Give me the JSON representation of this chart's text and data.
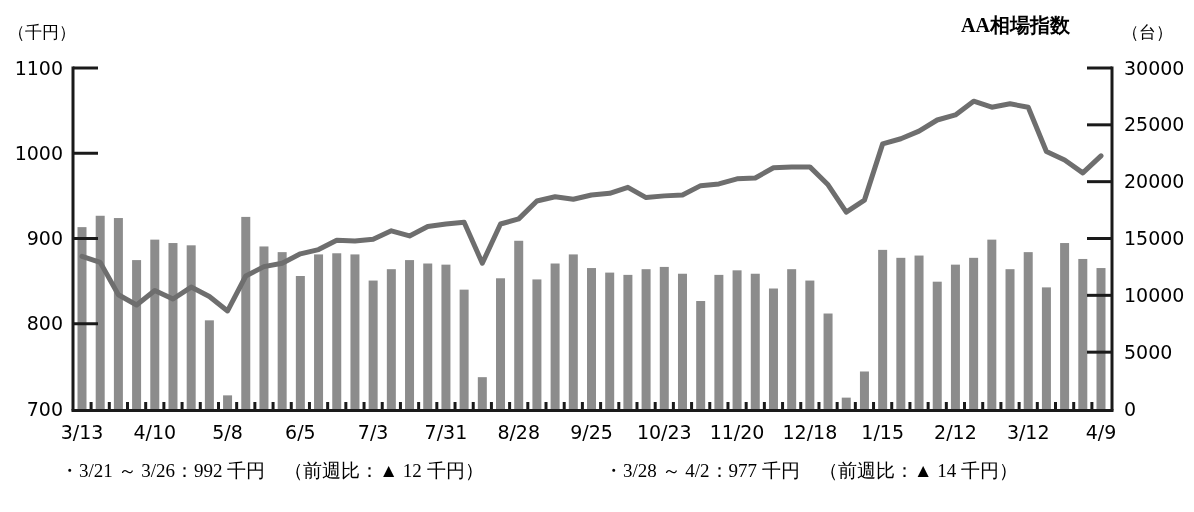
{
  "chart_data": {
    "type": "bar",
    "title": "AA相場指数",
    "ylabel": "（千円）",
    "y2label": "（台）",
    "categories": [
      "3/13",
      null,
      null,
      null,
      "4/10",
      null,
      null,
      null,
      "5/8",
      null,
      null,
      null,
      "6/5",
      null,
      null,
      null,
      "7/3",
      null,
      null,
      null,
      "7/31",
      null,
      null,
      null,
      "8/28",
      null,
      null,
      null,
      "9/25",
      null,
      null,
      null,
      "10/23",
      null,
      null,
      null,
      "11/20",
      null,
      null,
      null,
      "12/18",
      null,
      null,
      null,
      "1/15",
      null,
      null,
      null,
      "2/12",
      null,
      null,
      null,
      "3/12",
      null,
      null,
      null,
      "4/9"
    ],
    "series": [
      {
        "axis": "y2",
        "color": "#8c8c8c",
        "values": [
          16000,
          17000,
          16800,
          13100,
          14900,
          14600,
          14400,
          7800,
          1200,
          16900,
          14300,
          13800,
          11700,
          13600,
          13700,
          13600,
          11300,
          12300,
          13100,
          12800,
          12700,
          10500,
          2800,
          11500,
          14800,
          11400,
          12800,
          13600,
          12400,
          12000,
          11800,
          12300,
          12500,
          11900,
          9500,
          11800,
          12200,
          11900,
          10600,
          12300,
          11300,
          8400,
          1000,
          3300,
          14000,
          13300,
          13500,
          11200,
          12700,
          13300,
          14900,
          12300,
          13800,
          10700,
          14600,
          13200,
          12400
        ]
      },
      {
        "type": "line",
        "color": "#6e6e6e",
        "values": [
          879,
          872,
          834,
          822,
          839,
          829,
          843,
          832,
          815,
          856,
          867,
          871,
          882,
          887,
          898,
          897,
          899,
          909,
          903,
          914,
          917,
          919,
          871,
          917,
          923,
          944,
          949,
          946,
          951,
          953,
          960,
          948,
          950,
          951,
          962,
          964,
          970,
          971,
          983,
          984,
          984,
          963,
          931,
          945,
          1011,
          1017,
          1026,
          1039,
          1045,
          1061,
          1054,
          1058,
          1054,
          1002,
          992,
          977,
          997
        ]
      }
    ],
    "ylim": [
      700,
      1100
    ],
    "yticks": [
      700,
      800,
      900,
      1000,
      1100
    ],
    "y2lim": [
      0,
      30000
    ],
    "y2ticks": [
      0,
      5000,
      10000,
      15000,
      20000,
      25000,
      30000
    ],
    "annotations": [
      "・3/21 ～ 3/26：992 千円　（前週比：▲ 12 千円）",
      "・3/28 ～ 4/2：977 千円　（前週比：▲ 14 千円）"
    ]
  }
}
